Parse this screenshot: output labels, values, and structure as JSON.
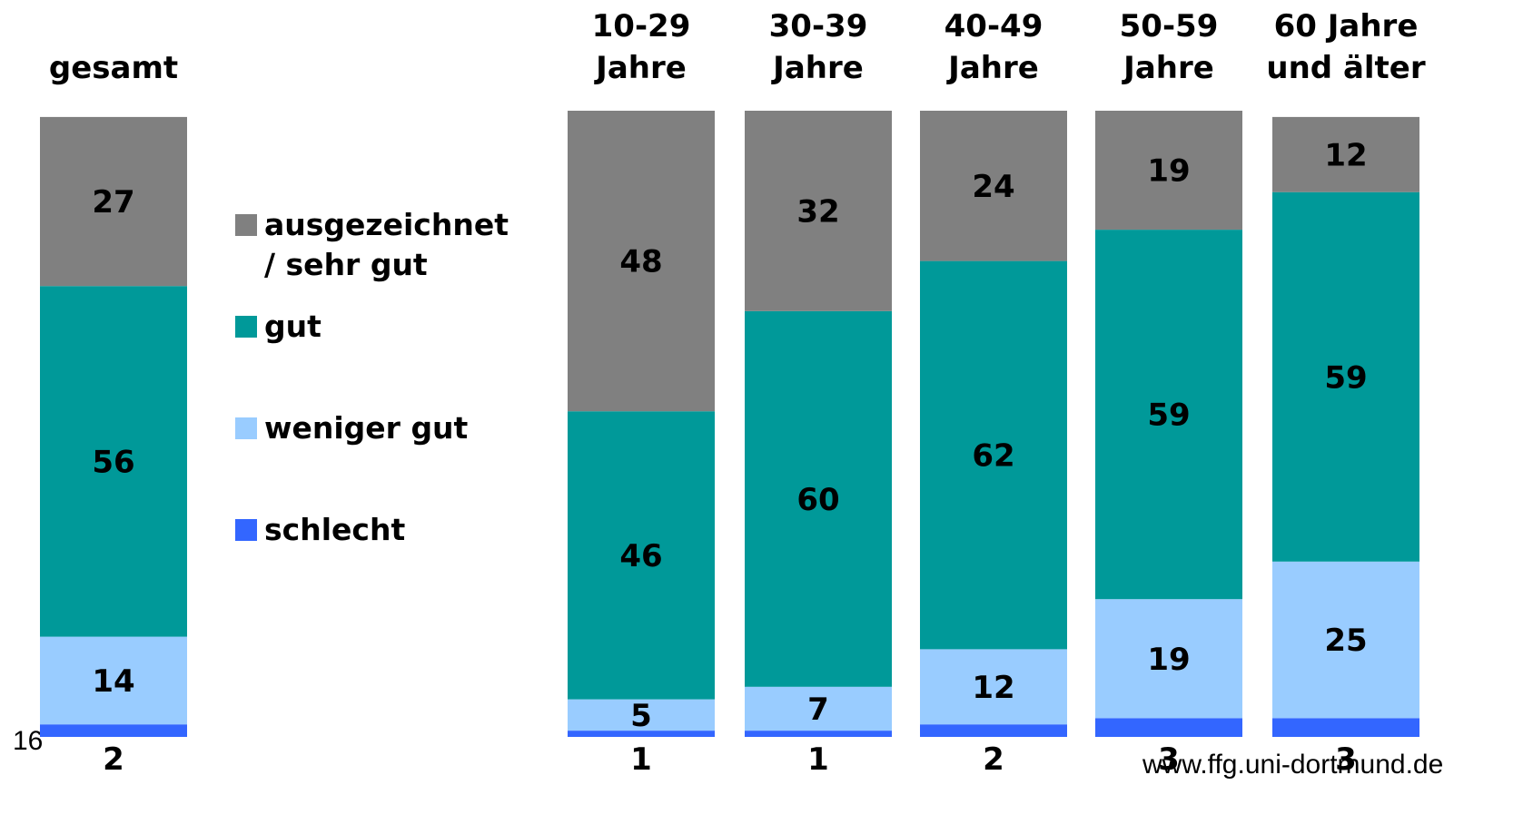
{
  "chart_data": {
    "type": "stacked_bar",
    "categories": [
      [
        "gesamt"
      ],
      [
        "10-29",
        "Jahre"
      ],
      [
        "30-39",
        "Jahre"
      ],
      [
        "40-49",
        "Jahre"
      ],
      [
        "50-59",
        "Jahre"
      ],
      [
        "60 Jahre",
        "und älter"
      ]
    ],
    "series": [
      {
        "name": "schlecht",
        "color": "#3366ff",
        "values": [
          2,
          1,
          1,
          2,
          3,
          3
        ]
      },
      {
        "name": "weniger gut",
        "color": "#99ccff",
        "values": [
          14,
          5,
          7,
          12,
          19,
          25
        ]
      },
      {
        "name": "gut",
        "color": "#009999",
        "values": [
          56,
          46,
          60,
          62,
          59,
          59
        ]
      },
      {
        "name": "ausgezeichnet / sehr gut",
        "color": "#808080",
        "values": [
          27,
          48,
          32,
          24,
          19,
          12
        ]
      }
    ],
    "ylim": [
      0,
      100
    ],
    "page_number": "16",
    "url": "www.ffg.uni-dortmund.de"
  }
}
